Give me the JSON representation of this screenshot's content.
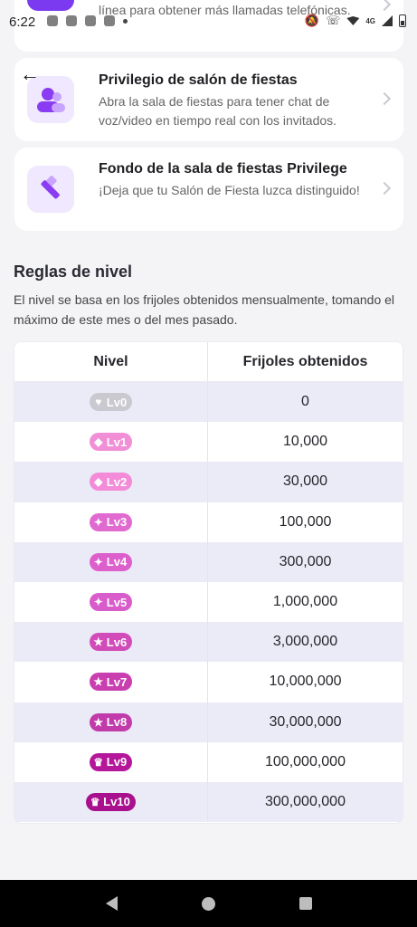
{
  "status_bar": {
    "time": "6:22",
    "network": "4G"
  },
  "cards": {
    "top": {
      "desc": "línea para obtener más llamadas telefónicas."
    },
    "party": {
      "title": "Privilegio de salón de fiestas",
      "desc": "Abra la sala de fiestas para tener chat de voz/video en tiempo real con los invitados."
    },
    "background": {
      "title": "Fondo de la sala de fiestas Privilege",
      "desc": "¡Deja que tu Salón de Fiesta luzca distinguido!"
    }
  },
  "rules": {
    "title": "Reglas de nivel",
    "desc": "El nivel se basa en los frijoles obtenidos mensualmente, tomando el máximo de este mes o del mes pasado."
  },
  "table": {
    "headers": [
      "Nivel",
      "Frijoles obtenidos"
    ],
    "rows": [
      {
        "level": "Lv0",
        "beans": "0",
        "color": "#c9c9cf",
        "icon": "heart-icon"
      },
      {
        "level": "Lv1",
        "beans": "10,000",
        "color": "#f08fd6",
        "icon": "diamond-icon"
      },
      {
        "level": "Lv2",
        "beans": "30,000",
        "color": "#f38bd8",
        "icon": "diamond-icon"
      },
      {
        "level": "Lv3",
        "beans": "100,000",
        "color": "#e06ad0",
        "icon": "sparkle-icon"
      },
      {
        "level": "Lv4",
        "beans": "300,000",
        "color": "#dd5fcc",
        "icon": "sparkle-icon"
      },
      {
        "level": "Lv5",
        "beans": "1,000,000",
        "color": "#d95ccb",
        "icon": "sparkle-icon"
      },
      {
        "level": "Lv6",
        "beans": "3,000,000",
        "color": "#d14bb9",
        "icon": "star-icon"
      },
      {
        "level": "Lv7",
        "beans": "10,000,000",
        "color": "#c93fb0",
        "icon": "star-icon"
      },
      {
        "level": "Lv8",
        "beans": "30,000,000",
        "color": "#c23bab",
        "icon": "star-icon"
      },
      {
        "level": "Lv9",
        "beans": "100,000,000",
        "color": "#b4179a",
        "icon": "crown-icon"
      },
      {
        "level": "Lv10",
        "beans": "300,000,000",
        "color": "#a8108d",
        "icon": "crown-icon"
      }
    ]
  },
  "colors": {
    "accent": "#7b3af0",
    "row_alt": "#ebebf7"
  }
}
